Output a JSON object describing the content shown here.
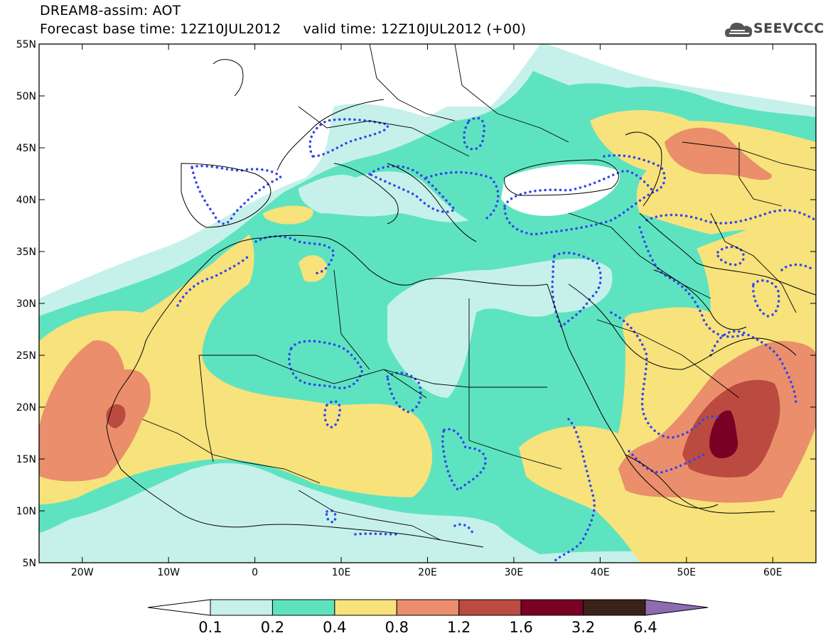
{
  "header": {
    "line1": "DREAM8-assim: AOT",
    "line2": "Forecast base time: 12Z10JUL2012     valid time: 12Z10JUL2012 (+00)"
  },
  "logo": {
    "text": "SEEVCCC",
    "icon": "cloud-icon"
  },
  "map": {
    "projection": "lat-lon",
    "lon_range": [
      -25,
      65
    ],
    "lat_range": [
      5,
      55
    ],
    "lat_labels": [
      "55N",
      "50N",
      "45N",
      "40N",
      "35N",
      "30N",
      "25N",
      "20N",
      "15N",
      "10N",
      "5N"
    ],
    "lon_labels": [
      "20W",
      "10W",
      "0",
      "10E",
      "20E",
      "30E",
      "40E",
      "50E",
      "60E"
    ],
    "contour_line_color": "#3344ee",
    "contour_line_style": "dotted"
  },
  "colorbar": {
    "levels": [
      "0.1",
      "0.2",
      "0.4",
      "0.8",
      "1.2",
      "1.6",
      "3.2",
      "6.4"
    ],
    "colors": [
      "#ffffff",
      "#c6f1ea",
      "#5ee3c0",
      "#f7e27c",
      "#ea8e6b",
      "#bb4b40",
      "#7a0026",
      "#3a2218",
      "#8e6cb0"
    ]
  }
}
